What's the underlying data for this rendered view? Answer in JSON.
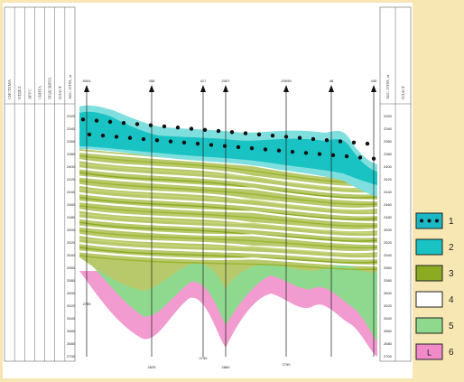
{
  "diagram": {
    "left_header_columns": [
      "СИСТЕМА",
      "ОТДЕЛ",
      "ЯРУС",
      "СВИТА",
      "ПОДСВИТА",
      "ПЛАСТ",
      "АБС. ОТМ., м"
    ],
    "right_header_columns": [
      "АБС. ОТМ., м",
      "ПЛАСТ"
    ],
    "well_ids": [
      "5004",
      "458",
      "417",
      "2007",
      "20099",
      "48",
      "435"
    ],
    "depth_ticks": [
      "2320",
      "2340",
      "2360",
      "2380",
      "2400",
      "2420",
      "2440",
      "2460",
      "2480",
      "2500",
      "2520",
      "2540",
      "2560",
      "2580",
      "2600",
      "2620",
      "2640",
      "2660",
      "2680",
      "2700"
    ],
    "bottom_labels": [
      "2795",
      "2825",
      "2755",
      "2860",
      "2790"
    ],
    "colors": {
      "bg": "#f6e7b3",
      "cyan_dark": "#19c3c3",
      "cyan_light": "#7fdfdf",
      "olive": "#9bb52f",
      "white": "#ffffff",
      "green_light": "#8fd98f",
      "pink": "#f08ac8"
    }
  },
  "legend": {
    "items": [
      {
        "label": "1",
        "color": "#19b8c4",
        "pattern": "dots"
      },
      {
        "label": "2",
        "color": "#19c3c3",
        "pattern": "solid"
      },
      {
        "label": "3",
        "color": "#8caa22",
        "pattern": "solid"
      },
      {
        "label": "4",
        "color": "#ffffff",
        "pattern": "solid"
      },
      {
        "label": "5",
        "color": "#8fd98f",
        "pattern": "solid"
      },
      {
        "label": "6",
        "color": "#f08ac8",
        "pattern": "L"
      }
    ],
    "item6_glyph": "L"
  }
}
